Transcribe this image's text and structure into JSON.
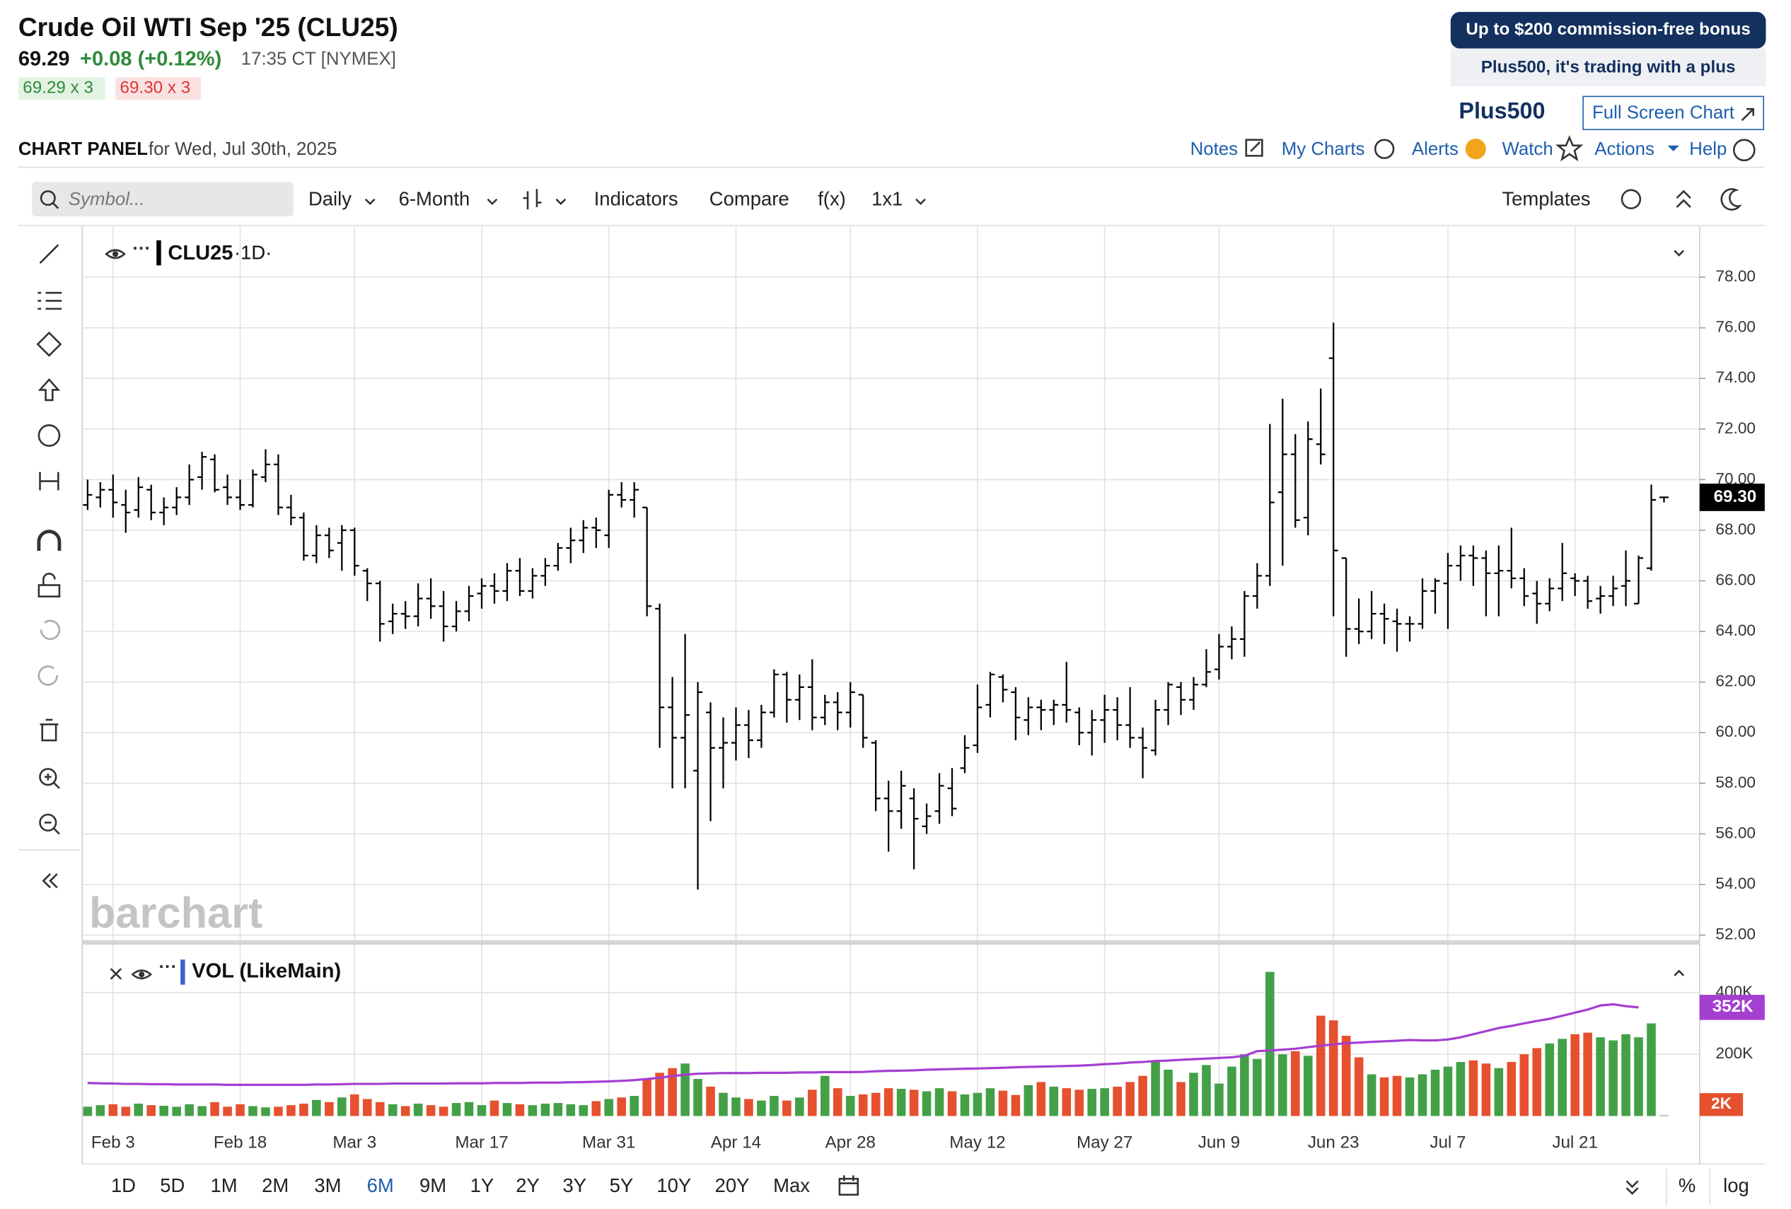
{
  "header": {
    "title": "Crude Oil WTI Sep '25 (CLU25)",
    "last": "69.29",
    "change": "+0.08 (+0.12%)",
    "time": "17:35 CT [NYMEX]",
    "bid": "69.29 x 3",
    "ask": "69.30 x 3"
  },
  "ad": {
    "line1": "Up to $200 commission-free bonus",
    "line2": "Plus500, it's trading with a plus",
    "logo": "Plus500",
    "full_screen": "Full Screen Chart"
  },
  "panel": {
    "title": "CHART PANEL",
    "date": "for Wed, Jul 30th, 2025",
    "links": [
      "Notes",
      "My Charts",
      "Alerts",
      "Watch",
      "Actions",
      "Help"
    ]
  },
  "toolbar": {
    "search_placeholder": "Symbol...",
    "items": [
      "Daily",
      "6-Month",
      "Indicators",
      "Compare",
      "f(x)",
      "1x1"
    ],
    "templates": "Templates"
  },
  "watermark": "barchart",
  "ranges": [
    "1D",
    "5D",
    "1M",
    "2M",
    "3M",
    "6M",
    "9M",
    "1Y",
    "2Y",
    "3Y",
    "5Y",
    "10Y",
    "20Y",
    "Max"
  ],
  "selected_range": 5,
  "scale_buttons": [
    "%",
    "log"
  ],
  "chart_data": [
    {
      "type": "ohlc",
      "symbol": "CLU25",
      "interval": "·1D·",
      "color": "#000000",
      "grid": true,
      "ylim": [
        51.8,
        80
      ],
      "yticks": [
        {
          "value": 52,
          "label": "52.00"
        },
        {
          "value": 54,
          "label": "54.00"
        },
        {
          "value": 56,
          "label": "56.00"
        },
        {
          "value": 58,
          "label": "58.00"
        },
        {
          "value": 60,
          "label": "60.00"
        },
        {
          "value": 62,
          "label": "62.00"
        },
        {
          "value": 64,
          "label": "64.00"
        },
        {
          "value": 66,
          "label": "66.00"
        },
        {
          "value": 68,
          "label": "68.00"
        },
        {
          "value": 70,
          "label": "70.00"
        },
        {
          "value": 72,
          "label": "72.00"
        },
        {
          "value": 74,
          "label": "74.00"
        },
        {
          "value": 76,
          "label": "76.00"
        },
        {
          "value": 78,
          "label": "78.00"
        }
      ],
      "price_marker": {
        "value": 69.3,
        "label": "69.30"
      },
      "ohlc": [
        [
          69.0,
          70.0,
          68.8,
          69.4
        ],
        [
          69.3,
          69.9,
          68.9,
          69.6
        ],
        [
          69.6,
          70.2,
          68.5,
          69.1
        ],
        [
          69.0,
          69.6,
          67.9,
          68.7
        ],
        [
          68.8,
          70.1,
          68.5,
          69.7
        ],
        [
          69.6,
          69.8,
          68.4,
          68.7
        ],
        [
          68.7,
          69.3,
          68.2,
          68.9
        ],
        [
          68.9,
          69.7,
          68.6,
          69.3
        ],
        [
          69.3,
          70.6,
          69.0,
          70.0
        ],
        [
          70.1,
          71.1,
          69.6,
          70.9
        ],
        [
          70.8,
          71.0,
          69.5,
          69.6
        ],
        [
          69.7,
          70.2,
          69.0,
          69.3
        ],
        [
          69.3,
          70.0,
          68.8,
          69.0
        ],
        [
          69.0,
          70.4,
          68.9,
          70.2
        ],
        [
          70.1,
          71.2,
          69.9,
          70.6
        ],
        [
          70.6,
          71.0,
          68.6,
          68.9
        ],
        [
          68.9,
          69.4,
          68.2,
          68.5
        ],
        [
          68.5,
          68.7,
          66.8,
          67.0
        ],
        [
          67.0,
          68.2,
          66.7,
          67.8
        ],
        [
          67.8,
          68.1,
          66.9,
          67.2
        ],
        [
          67.5,
          68.2,
          66.4,
          68.0
        ],
        [
          68.0,
          68.1,
          66.2,
          66.6
        ],
        [
          66.4,
          66.5,
          65.2,
          65.9
        ],
        [
          65.9,
          66.0,
          63.6,
          64.3
        ],
        [
          64.4,
          65.1,
          63.9,
          64.7
        ],
        [
          64.7,
          65.2,
          64.1,
          64.6
        ],
        [
          64.6,
          65.9,
          64.2,
          65.3
        ],
        [
          65.3,
          66.1,
          64.5,
          65.0
        ],
        [
          65.0,
          65.6,
          63.6,
          64.2
        ],
        [
          64.2,
          65.2,
          64.0,
          64.8
        ],
        [
          64.8,
          65.8,
          64.4,
          65.4
        ],
        [
          65.5,
          66.1,
          64.9,
          65.8
        ],
        [
          65.8,
          66.3,
          65.1,
          65.6
        ],
        [
          65.6,
          66.7,
          65.2,
          66.4
        ],
        [
          66.4,
          66.9,
          65.4,
          65.6
        ],
        [
          65.6,
          66.5,
          65.3,
          66.2
        ],
        [
          66.2,
          66.9,
          65.8,
          66.6
        ],
        [
          66.6,
          67.5,
          66.4,
          67.3
        ],
        [
          67.3,
          68.1,
          66.7,
          67.6
        ],
        [
          67.6,
          68.4,
          67.1,
          68.1
        ],
        [
          68.1,
          68.5,
          67.3,
          68.0
        ],
        [
          67.8,
          69.6,
          67.3,
          69.4
        ],
        [
          69.4,
          69.9,
          68.9,
          69.2
        ],
        [
          69.2,
          69.9,
          68.5,
          69.6
        ],
        [
          68.9,
          68.9,
          64.6,
          65.0
        ],
        [
          64.9,
          65.1,
          59.4,
          61.0
        ],
        [
          61.0,
          62.2,
          57.8,
          59.8
        ],
        [
          59.8,
          63.9,
          57.8,
          60.7
        ],
        [
          58.5,
          62.0,
          53.8,
          61.6
        ],
        [
          60.8,
          61.2,
          56.5,
          59.4
        ],
        [
          59.4,
          60.6,
          57.8,
          59.6
        ],
        [
          59.6,
          61.0,
          58.9,
          60.3
        ],
        [
          60.3,
          60.9,
          59.0,
          59.7
        ],
        [
          59.7,
          61.1,
          59.4,
          60.8
        ],
        [
          60.8,
          62.5,
          60.6,
          62.3
        ],
        [
          62.3,
          62.4,
          60.4,
          61.3
        ],
        [
          61.3,
          62.3,
          60.5,
          61.8
        ],
        [
          61.8,
          62.9,
          60.1,
          60.6
        ],
        [
          60.6,
          61.5,
          60.3,
          61.2
        ],
        [
          61.2,
          61.6,
          60.1,
          60.8
        ],
        [
          60.8,
          62.0,
          60.2,
          61.6
        ],
        [
          61.5,
          61.5,
          59.4,
          59.8
        ],
        [
          59.6,
          59.7,
          56.9,
          57.4
        ],
        [
          57.4,
          58.1,
          55.3,
          56.9
        ],
        [
          56.9,
          58.5,
          56.2,
          57.9
        ],
        [
          57.4,
          57.8,
          54.6,
          56.6
        ],
        [
          56.3,
          57.2,
          56.0,
          56.7
        ],
        [
          56.9,
          58.4,
          56.4,
          57.9
        ],
        [
          57.8,
          58.6,
          56.7,
          57.0
        ],
        [
          58.6,
          59.9,
          58.4,
          59.4
        ],
        [
          59.5,
          61.9,
          59.2,
          61.0
        ],
        [
          61.1,
          62.4,
          60.6,
          62.3
        ],
        [
          62.2,
          62.3,
          61.2,
          61.7
        ],
        [
          61.6,
          61.8,
          59.7,
          60.6
        ],
        [
          60.5,
          61.4,
          59.9,
          61.0
        ],
        [
          61.0,
          61.3,
          60.1,
          60.9
        ],
        [
          60.9,
          61.3,
          60.3,
          61.1
        ],
        [
          61.1,
          62.8,
          60.4,
          60.9
        ],
        [
          60.8,
          61.0,
          59.5,
          60.0
        ],
        [
          60.0,
          60.9,
          59.1,
          60.5
        ],
        [
          60.5,
          61.5,
          59.6,
          60.9
        ],
        [
          60.9,
          61.4,
          59.7,
          60.3
        ],
        [
          60.3,
          61.8,
          59.4,
          59.8
        ],
        [
          59.8,
          60.2,
          58.2,
          59.4
        ],
        [
          59.3,
          61.3,
          59.1,
          60.9
        ],
        [
          60.9,
          62.0,
          60.3,
          61.9
        ],
        [
          61.8,
          62.0,
          60.7,
          61.3
        ],
        [
          61.3,
          62.2,
          60.9,
          61.9
        ],
        [
          61.9,
          63.3,
          61.8,
          62.4
        ],
        [
          62.5,
          63.9,
          62.1,
          63.4
        ],
        [
          63.4,
          64.2,
          62.9,
          63.7
        ],
        [
          63.7,
          65.6,
          63.0,
          65.4
        ],
        [
          65.4,
          66.7,
          64.9,
          66.2
        ],
        [
          66.2,
          72.2,
          65.8,
          69.1
        ],
        [
          69.5,
          73.2,
          66.6,
          71.0
        ],
        [
          71.0,
          71.8,
          68.1,
          68.4
        ],
        [
          68.5,
          72.3,
          67.8,
          71.6
        ],
        [
          71.4,
          73.6,
          70.6,
          71.0
        ],
        [
          74.8,
          76.2,
          64.6,
          67.2
        ],
        [
          66.9,
          66.9,
          63.0,
          64.1
        ],
        [
          64.1,
          65.3,
          63.5,
          64.0
        ],
        [
          64.0,
          65.6,
          63.7,
          64.7
        ],
        [
          64.7,
          65.1,
          63.5,
          64.5
        ],
        [
          64.4,
          64.9,
          63.2,
          64.3
        ],
        [
          64.3,
          64.6,
          63.6,
          64.3
        ],
        [
          64.3,
          66.1,
          64.1,
          65.6
        ],
        [
          65.6,
          66.1,
          64.7,
          66.0
        ],
        [
          65.9,
          67.1,
          64.1,
          66.6
        ],
        [
          66.6,
          67.4,
          66.0,
          67.0
        ],
        [
          67.0,
          67.4,
          65.8,
          66.9
        ],
        [
          66.9,
          67.2,
          64.6,
          66.3
        ],
        [
          66.3,
          67.4,
          64.6,
          66.4
        ],
        [
          66.4,
          68.1,
          65.7,
          66.1
        ],
        [
          66.1,
          66.5,
          65.0,
          65.4
        ],
        [
          65.5,
          66.0,
          64.3,
          65.1
        ],
        [
          65.1,
          66.1,
          64.8,
          65.7
        ],
        [
          65.7,
          67.5,
          65.2,
          66.3
        ],
        [
          66.1,
          66.3,
          65.4,
          66.0
        ],
        [
          66.0,
          66.2,
          64.9,
          65.2
        ],
        [
          65.3,
          65.8,
          64.7,
          65.4
        ],
        [
          65.4,
          66.2,
          65.0,
          65.7
        ],
        [
          65.8,
          67.2,
          65.0,
          66.0
        ],
        [
          65.1,
          67.0,
          65.1,
          66.9
        ],
        [
          66.5,
          69.8,
          66.4,
          69.2
        ],
        [
          69.3,
          69.3,
          69.1,
          69.3
        ]
      ]
    },
    {
      "type": "bar",
      "title": "VOL (LikeMain)",
      "up_color": "#43a047",
      "down_color": "#e5502e",
      "average_color": "#a43fd1",
      "ylim": [
        0,
        555000
      ],
      "yticks": [
        {
          "value": 200000,
          "label": "200K"
        },
        {
          "value": 400000,
          "label": "400K"
        }
      ],
      "average_marker": {
        "value": 352000,
        "label": "352K"
      },
      "volume_marker": {
        "value": 2000,
        "label": "2K"
      },
      "categories": [
        null,
        null,
        "Feb 3",
        null,
        null,
        null,
        null,
        null,
        null,
        null,
        null,
        null,
        "Feb 18",
        null,
        null,
        null,
        null,
        null,
        null,
        null,
        null,
        "Mar 3",
        null,
        null,
        null,
        null,
        null,
        null,
        null,
        null,
        null,
        "Mar 17",
        null,
        null,
        null,
        null,
        null,
        null,
        null,
        null,
        null,
        "Mar 31",
        null,
        null,
        null,
        null,
        null,
        null,
        null,
        null,
        null,
        "Apr 14",
        null,
        null,
        null,
        null,
        null,
        null,
        null,
        null,
        "Apr 28",
        null,
        null,
        null,
        null,
        null,
        null,
        null,
        null,
        null,
        "May 12",
        null,
        null,
        null,
        null,
        null,
        null,
        null,
        null,
        null,
        "May 27",
        null,
        null,
        null,
        null,
        null,
        null,
        null,
        null,
        "Jun 9",
        null,
        null,
        null,
        null,
        null,
        null,
        null,
        null,
        "Jun 23",
        null,
        null,
        null,
        null,
        null,
        null,
        null,
        null,
        "Jul 7",
        null,
        null,
        null,
        null,
        null,
        null,
        null,
        null,
        null,
        "Jul 21",
        null,
        null,
        null,
        null,
        null,
        null,
        null
      ],
      "values": [
        30000,
        35000,
        38000,
        30000,
        40000,
        35000,
        33000,
        30000,
        38000,
        32000,
        45000,
        30000,
        38000,
        32000,
        28000,
        30000,
        35000,
        40000,
        52000,
        45000,
        60000,
        70000,
        55000,
        45000,
        38000,
        32000,
        40000,
        35000,
        30000,
        42000,
        45000,
        35000,
        50000,
        42000,
        38000,
        35000,
        40000,
        42000,
        38000,
        35000,
        48000,
        55000,
        60000,
        65000,
        120000,
        140000,
        155000,
        170000,
        120000,
        95000,
        75000,
        60000,
        55000,
        50000,
        65000,
        50000,
        60000,
        85000,
        130000,
        90000,
        65000,
        70000,
        75000,
        90000,
        88000,
        85000,
        80000,
        90000,
        80000,
        70000,
        75000,
        90000,
        82000,
        68000,
        100000,
        110000,
        95000,
        90000,
        85000,
        88000,
        90000,
        95000,
        110000,
        130000,
        180000,
        150000,
        110000,
        140000,
        165000,
        105000,
        160000,
        200000,
        185000,
        467000,
        200000,
        210000,
        195000,
        325000,
        310000,
        260000,
        190000,
        135000,
        125000,
        130000,
        125000,
        135000,
        150000,
        160000,
        175000,
        180000,
        170000,
        155000,
        175000,
        200000,
        220000,
        235000,
        250000,
        265000,
        270000,
        255000,
        245000,
        265000,
        255000,
        300000,
        2000
      ],
      "average": [
        107000,
        106000,
        105000,
        104000,
        104000,
        103000,
        103000,
        102000,
        102000,
        102000,
        102000,
        101000,
        101000,
        101000,
        101000,
        101000,
        101000,
        101000,
        102000,
        102000,
        103000,
        104000,
        104000,
        104000,
        105000,
        105000,
        105000,
        105000,
        105000,
        106000,
        106000,
        106000,
        107000,
        107000,
        107000,
        108000,
        108000,
        108000,
        109000,
        110000,
        111000,
        112000,
        114000,
        116000,
        120000,
        124000,
        129000,
        134000,
        137000,
        138000,
        139000,
        139000,
        139000,
        140000,
        140000,
        140000,
        141000,
        141000,
        142000,
        142000,
        142000,
        143000,
        145000,
        146000,
        147000,
        148000,
        150000,
        151000,
        152000,
        153000,
        154000,
        155000,
        156000,
        158000,
        159000,
        160000,
        161000,
        162000,
        163000,
        165000,
        168000,
        170000,
        173000,
        175000,
        178000,
        180000,
        182000,
        184000,
        186000,
        188000,
        190000,
        195000,
        210000,
        212000,
        215000,
        218000,
        223000,
        228000,
        232000,
        236000,
        238000,
        240000,
        242000,
        244000,
        246000,
        245000,
        245000,
        248000,
        255000,
        265000,
        275000,
        285000,
        292000,
        300000,
        308000,
        315000,
        325000,
        335000,
        345000,
        358000,
        362000,
        356000,
        352000,
        null,
        null
      ]
    }
  ]
}
